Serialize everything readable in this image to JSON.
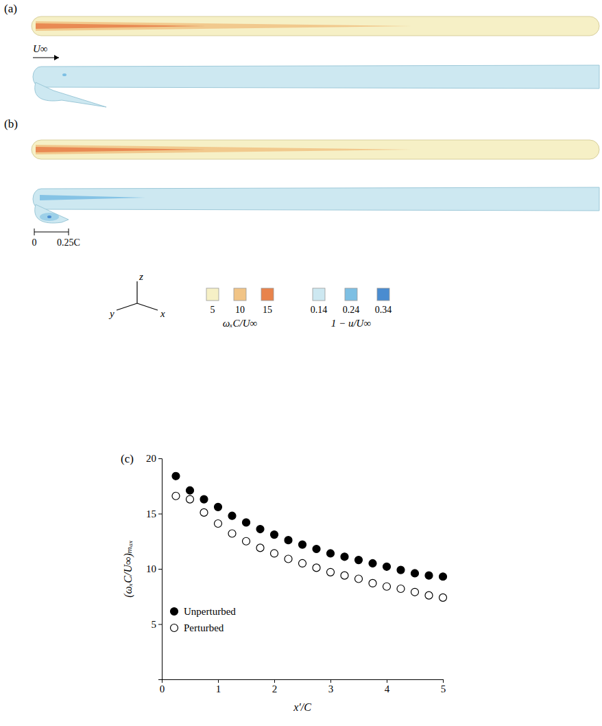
{
  "chart_data": {
    "type": "scatter",
    "x_label": "x′/C",
    "y_label": "(ωₓC/U∞)ₘₐₓ",
    "x": [
      0.25,
      0.5,
      0.75,
      1.0,
      1.25,
      1.5,
      1.75,
      2.0,
      2.25,
      2.5,
      2.75,
      3.0,
      3.25,
      3.5,
      3.75,
      4.0,
      4.25,
      4.5,
      4.75,
      5.0
    ],
    "series": [
      {
        "name": "Unperturbed",
        "color": "#000000",
        "marker": "circle",
        "values": [
          18.4,
          17.1,
          16.3,
          15.6,
          14.8,
          14.2,
          13.6,
          13.1,
          12.6,
          12.2,
          11.8,
          11.4,
          11.1,
          10.8,
          10.5,
          10.2,
          9.9,
          9.6,
          9.4,
          9.3
        ]
      },
      {
        "name": "Perturbed",
        "color": "#000000",
        "marker": "open_circle",
        "values": [
          16.6,
          16.3,
          15.1,
          14.1,
          13.2,
          12.5,
          11.9,
          11.4,
          10.9,
          10.5,
          10.1,
          9.7,
          9.4,
          9.1,
          8.7,
          8.4,
          8.2,
          7.9,
          7.6,
          7.4
        ]
      }
    ],
    "xlim": [
      0,
      5
    ],
    "xticks": [
      0,
      1,
      2,
      3,
      4,
      5
    ],
    "ylim": [
      0,
      20
    ],
    "yticks": [
      5,
      10,
      15,
      20
    ],
    "legend": "lower left",
    "grid": false
  },
  "figure": {
    "panel_labels": [
      "(a)",
      "(b)",
      "(c)"
    ],
    "flow_label": "U∞",
    "scale_bar": [
      "0",
      "0.25C"
    ],
    "axes_triad": [
      "z",
      "y",
      "x"
    ],
    "colorbars": [
      {
        "title": "ωₓC/U∞",
        "ticks": [
          5,
          10,
          15
        ],
        "colors": [
          "#f6f0c6",
          "#f1c486",
          "#e8834c"
        ]
      },
      {
        "title": "1 − u/U∞",
        "ticks": [
          0.14,
          0.24,
          0.34
        ],
        "colors": [
          "#cde8f1",
          "#7dbfe3",
          "#4a8cd0"
        ]
      }
    ]
  }
}
